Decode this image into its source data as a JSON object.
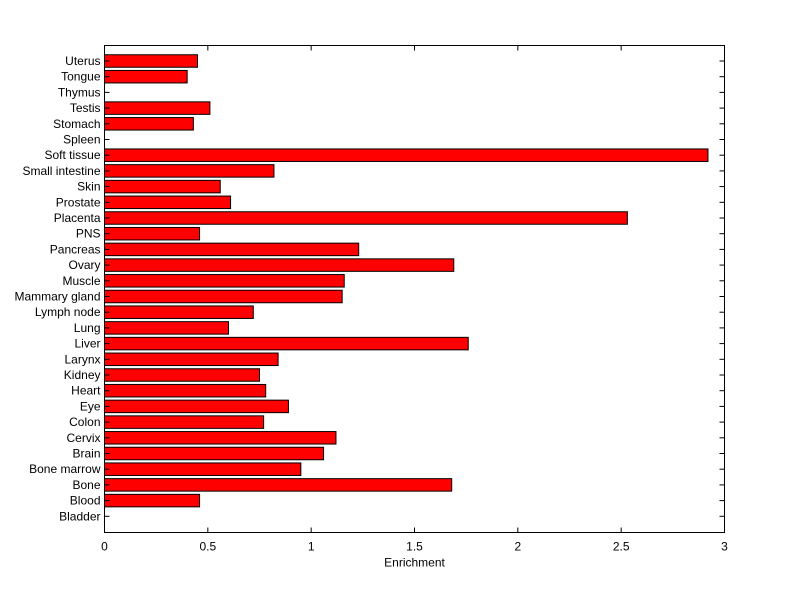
{
  "chart_data": {
    "type": "bar",
    "orientation": "horizontal",
    "title": "",
    "xlabel": "Enrichment",
    "ylabel": "",
    "xlim": [
      0,
      3
    ],
    "xticks": [
      0,
      0.5,
      1,
      1.5,
      2,
      2.5,
      3
    ],
    "xtick_labels": [
      "0",
      "0.5",
      "1",
      "1.5",
      "2",
      "2.5",
      "3"
    ],
    "grid": false,
    "bar_color": "#ff0000",
    "bar_edge_color": "#000000",
    "categories": [
      "Uterus",
      "Tongue",
      "Thymus",
      "Testis",
      "Stomach",
      "Spleen",
      "Soft tissue",
      "Small intestine",
      "Skin",
      "Prostate",
      "Placenta",
      "PNS",
      "Pancreas",
      "Ovary",
      "Muscle",
      "Mammary gland",
      "Lymph node",
      "Lung",
      "Liver",
      "Larynx",
      "Kidney",
      "Heart",
      "Eye",
      "Colon",
      "Cervix",
      "Brain",
      "Bone marrow",
      "Bone",
      "Blood",
      "Bladder"
    ],
    "values": [
      0.45,
      0.4,
      0,
      0.51,
      0.43,
      0,
      2.92,
      0.82,
      0.56,
      0.61,
      2.53,
      0.46,
      1.23,
      1.69,
      1.16,
      1.15,
      0.72,
      0.6,
      1.76,
      0.84,
      0.75,
      0.78,
      0.89,
      0.77,
      1.12,
      1.06,
      0.95,
      1.68,
      0.46,
      0
    ]
  }
}
